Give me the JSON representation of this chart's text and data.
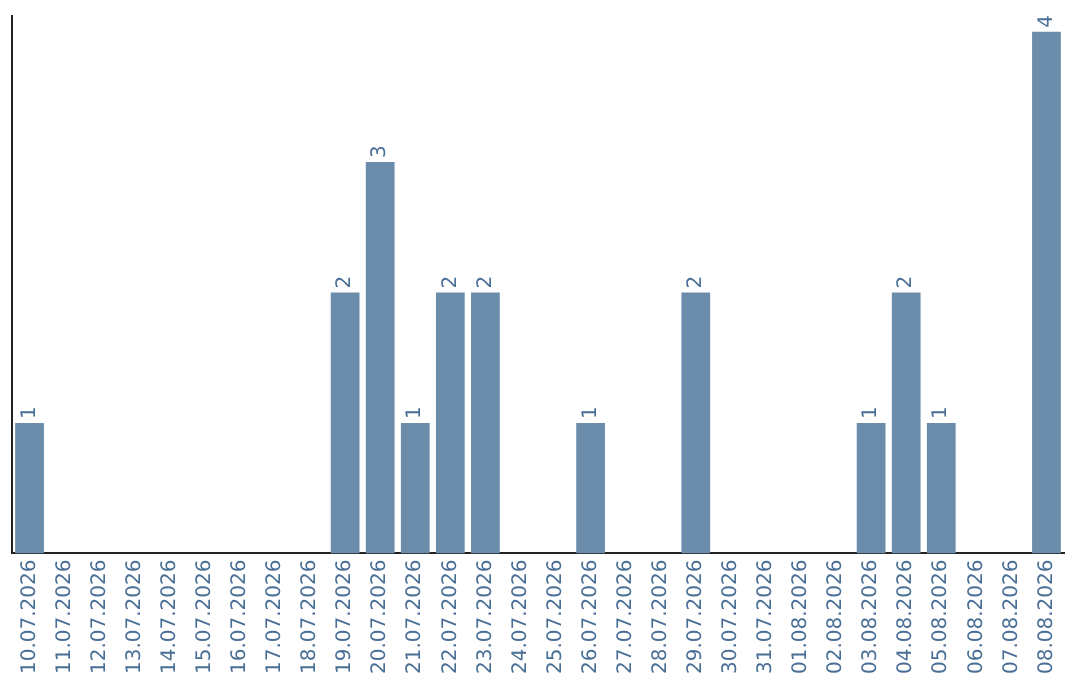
{
  "chart_data": {
    "type": "bar",
    "categories": [
      "10.07.2026",
      "11.07.2026",
      "12.07.2026",
      "13.07.2026",
      "14.07.2026",
      "15.07.2026",
      "16.07.2026",
      "17.07.2026",
      "18.07.2026",
      "19.07.2026",
      "20.07.2026",
      "21.07.2026",
      "22.07.2026",
      "23.07.2026",
      "24.07.2026",
      "25.07.2026",
      "26.07.2026",
      "27.07.2026",
      "28.07.2026",
      "29.07.2026",
      "30.07.2026",
      "31.07.2026",
      "01.08.2026",
      "02.08.2026",
      "03.08.2026",
      "04.08.2026",
      "05.08.2026",
      "06.08.2026",
      "07.08.2026",
      "08.08.2026"
    ],
    "values": [
      1,
      0,
      0,
      0,
      0,
      0,
      0,
      0,
      0,
      2,
      3,
      1,
      2,
      2,
      0,
      0,
      1,
      0,
      0,
      2,
      0,
      0,
      0,
      0,
      1,
      2,
      1,
      0,
      0,
      4
    ],
    "value_labels": [
      "1",
      null,
      null,
      null,
      null,
      null,
      null,
      null,
      null,
      "2",
      "3",
      "1",
      "2",
      "2",
      null,
      null,
      "1",
      null,
      null,
      "2",
      null,
      null,
      null,
      null,
      "1",
      "2",
      "1",
      null,
      null,
      "4"
    ],
    "color": "#6b8cab",
    "grid": false,
    "legend": false
  }
}
